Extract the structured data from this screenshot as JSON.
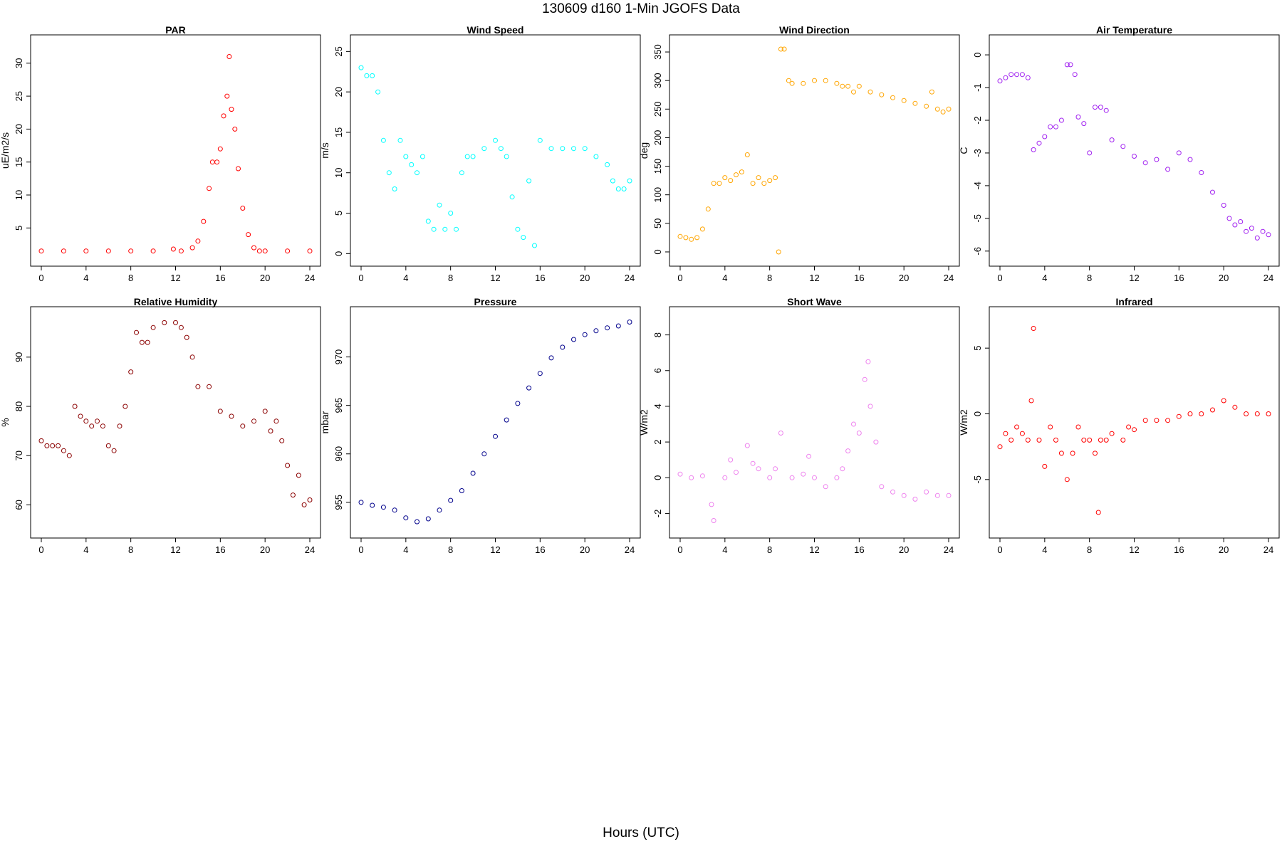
{
  "page": {
    "title": "130609   d160   1-Min  JGOFS Data",
    "xlabel": "Hours (UTC)"
  },
  "chart_data": [
    {
      "type": "scatter",
      "title": "PAR",
      "ylabel": "uE/m2/s",
      "color": "#ff0000",
      "xlim": [
        0,
        24
      ],
      "ylim": [
        0.5,
        33
      ],
      "xticks": [
        0,
        4,
        8,
        12,
        16,
        20,
        24
      ],
      "yticks": [
        5,
        10,
        15,
        20,
        25,
        30
      ],
      "x": [
        0,
        2,
        4,
        6,
        8,
        10,
        11.8,
        12.5,
        13.5,
        14,
        14.5,
        15,
        15.3,
        15.7,
        16,
        16.3,
        16.6,
        16.8,
        17,
        17.3,
        17.6,
        18,
        18.5,
        19,
        19.5,
        20,
        22,
        24
      ],
      "y": [
        1.5,
        1.5,
        1.5,
        1.5,
        1.5,
        1.5,
        1.8,
        1.5,
        2,
        3,
        6,
        11,
        15,
        15,
        17,
        22,
        25,
        31,
        23,
        20,
        14,
        8,
        4,
        2,
        1.5,
        1.5,
        1.5,
        1.5
      ]
    },
    {
      "type": "scatter",
      "title": "Wind Speed",
      "ylabel": "m/s",
      "color": "#00ffff",
      "xlim": [
        0,
        24
      ],
      "ylim": [
        -0.5,
        26
      ],
      "xticks": [
        0,
        4,
        8,
        12,
        16,
        20,
        24
      ],
      "yticks": [
        0,
        5,
        10,
        15,
        20,
        25
      ],
      "x": [
        0,
        0.5,
        1,
        1.5,
        2,
        2.5,
        3,
        3.5,
        4,
        4.5,
        5,
        5.5,
        6,
        6.5,
        7,
        7.5,
        8,
        8.5,
        9,
        9.5,
        10,
        11,
        12,
        12.5,
        13,
        13.5,
        14,
        14.5,
        15,
        15.5,
        16,
        17,
        18,
        19,
        20,
        21,
        22,
        22.5,
        23,
        23.5,
        24
      ],
      "y": [
        23,
        22,
        22,
        20,
        14,
        10,
        8,
        14,
        12,
        11,
        10,
        12,
        4,
        3,
        6,
        3,
        5,
        3,
        10,
        12,
        12,
        13,
        14,
        13,
        12,
        7,
        3,
        2,
        9,
        1,
        14,
        13,
        13,
        13,
        13,
        12,
        11,
        9,
        8,
        8,
        9
      ]
    },
    {
      "type": "scatter",
      "title": "Wind Direction",
      "ylabel": "deg",
      "color": "#ffa500",
      "xlim": [
        0,
        24
      ],
      "ylim": [
        -10,
        365
      ],
      "xticks": [
        0,
        4,
        8,
        12,
        16,
        20,
        24
      ],
      "yticks": [
        0,
        50,
        100,
        150,
        200,
        250,
        300,
        350
      ],
      "x": [
        0,
        0.5,
        1,
        1.5,
        2,
        2.5,
        3,
        3.5,
        4,
        4.5,
        5,
        5.5,
        6,
        6.5,
        7,
        7.5,
        8,
        8.5,
        8.8,
        9,
        9.3,
        9.7,
        10,
        11,
        12,
        13,
        14,
        14.5,
        15,
        15.5,
        16,
        17,
        18,
        19,
        20,
        21,
        22,
        22.5,
        23,
        23.5,
        24
      ],
      "y": [
        27,
        25,
        22,
        25,
        40,
        75,
        120,
        120,
        130,
        125,
        135,
        140,
        170,
        120,
        130,
        120,
        125,
        130,
        0,
        355,
        355,
        300,
        295,
        295,
        300,
        300,
        295,
        290,
        290,
        280,
        290,
        280,
        275,
        270,
        265,
        260,
        255,
        280,
        250,
        245,
        250
      ]
    },
    {
      "type": "scatter",
      "title": "Air Temperature",
      "ylabel": "C",
      "color": "#a020f0",
      "xlim": [
        0,
        24
      ],
      "ylim": [
        -6.2,
        0.35
      ],
      "xticks": [
        0,
        4,
        8,
        12,
        16,
        20,
        24
      ],
      "yticks": [
        0,
        -1,
        -2,
        -3,
        -4,
        -5,
        -6
      ],
      "x": [
        0,
        0.5,
        1,
        1.5,
        2,
        2.5,
        3,
        3.5,
        4,
        4.5,
        5,
        5.5,
        6,
        6.3,
        6.7,
        7,
        7.5,
        8,
        8.5,
        9,
        9.5,
        10,
        11,
        12,
        13,
        14,
        15,
        16,
        17,
        18,
        19,
        20,
        20.5,
        21,
        21.5,
        22,
        22.5,
        23,
        23.5,
        24
      ],
      "y": [
        -0.8,
        -0.7,
        -0.6,
        -0.6,
        -0.6,
        -0.7,
        -2.9,
        -2.7,
        -2.5,
        -2.2,
        -2.2,
        -2.0,
        -0.3,
        -0.3,
        -0.6,
        -1.9,
        -2.1,
        -3.0,
        -1.6,
        -1.6,
        -1.7,
        -2.6,
        -2.8,
        -3.1,
        -3.3,
        -3.2,
        -3.5,
        -3.0,
        -3.2,
        -3.6,
        -4.2,
        -4.6,
        -5.0,
        -5.2,
        -5.1,
        -5.4,
        -5.3,
        -5.6,
        -5.4,
        -5.5
      ]
    },
    {
      "type": "scatter",
      "title": "Relative Humidity",
      "ylabel": "%",
      "color": "#8b0000",
      "xlim": [
        0,
        24
      ],
      "ylim": [
        55,
        98.5
      ],
      "xticks": [
        0,
        4,
        8,
        12,
        16,
        20,
        24
      ],
      "yticks": [
        60,
        70,
        80,
        90
      ],
      "x": [
        0,
        0.5,
        1,
        1.5,
        2,
        2.5,
        3,
        3.5,
        4,
        4.5,
        5,
        5.5,
        6,
        6.5,
        7,
        7.5,
        8,
        8.5,
        9,
        9.5,
        10,
        11,
        12,
        12.5,
        13,
        13.5,
        14,
        15,
        16,
        17,
        18,
        19,
        20,
        20.5,
        21,
        21.5,
        22,
        22.5,
        23,
        23.5,
        24
      ],
      "y": [
        73,
        72,
        72,
        72,
        71,
        70,
        80,
        78,
        77,
        76,
        77,
        76,
        72,
        71,
        76,
        80,
        87,
        95,
        93,
        93,
        96,
        97,
        97,
        96,
        94,
        90,
        84,
        84,
        79,
        78,
        76,
        77,
        79,
        75,
        77,
        73,
        68,
        62,
        66,
        60,
        61
      ]
    },
    {
      "type": "scatter",
      "title": "Pressure",
      "ylabel": "mbar",
      "color": "#00008b",
      "xlim": [
        0,
        24
      ],
      "ylim": [
        952.2,
        974.3
      ],
      "xticks": [
        0,
        4,
        8,
        12,
        16,
        20,
        24
      ],
      "yticks": [
        955,
        960,
        965,
        970
      ],
      "x": [
        0,
        1,
        2,
        3,
        4,
        5,
        6,
        7,
        8,
        9,
        10,
        11,
        12,
        13,
        14,
        15,
        16,
        17,
        18,
        19,
        20,
        21,
        22,
        23,
        24
      ],
      "y": [
        955,
        954.7,
        954.5,
        954.2,
        953.4,
        953,
        953.3,
        954.2,
        955.2,
        956.2,
        958,
        960,
        961.8,
        963.5,
        965.2,
        966.8,
        968.3,
        969.9,
        971,
        971.8,
        972.3,
        972.7,
        973,
        973.2,
        973.6
      ]
    },
    {
      "type": "scatter",
      "title": "Short Wave",
      "ylabel": "W/m2",
      "color": "#ee82ee",
      "xlim": [
        0,
        24
      ],
      "ylim": [
        -2.9,
        9.1
      ],
      "xticks": [
        0,
        4,
        8,
        12,
        16,
        20,
        24
      ],
      "yticks": [
        -2,
        0,
        2,
        4,
        6,
        8
      ],
      "x": [
        0,
        1,
        2,
        2.8,
        3,
        4,
        4.5,
        5,
        6,
        6.5,
        7,
        8,
        8.5,
        9,
        10,
        11,
        11.5,
        12,
        13,
        14,
        14.5,
        15,
        15.5,
        16,
        16.5,
        16.8,
        17,
        17.5,
        18,
        19,
        20,
        21,
        22,
        23,
        24
      ],
      "y": [
        0.2,
        0,
        0.1,
        -1.5,
        -2.4,
        0,
        1,
        0.3,
        1.8,
        0.8,
        0.5,
        0,
        0.5,
        2.5,
        0,
        0.2,
        1.2,
        0,
        -0.5,
        0,
        0.5,
        1.5,
        3,
        2.5,
        5.5,
        6.5,
        4,
        2,
        -0.5,
        -0.8,
        -1,
        -1.2,
        -0.8,
        -1,
        -1
      ]
    },
    {
      "type": "scatter",
      "title": "Infrared",
      "ylabel": "W/m2",
      "color": "#ff0000",
      "xlim": [
        0,
        24
      ],
      "ylim": [
        -8.8,
        7.5
      ],
      "xticks": [
        0,
        4,
        8,
        12,
        16,
        20,
        24
      ],
      "yticks": [
        -5,
        0,
        5
      ],
      "x": [
        0,
        0.5,
        1,
        1.5,
        2,
        2.5,
        2.8,
        3,
        3.5,
        4,
        4.5,
        5,
        5.5,
        6,
        6.5,
        7,
        7.5,
        8,
        8.5,
        8.8,
        9,
        9.5,
        10,
        11,
        11.5,
        12,
        13,
        14,
        15,
        16,
        17,
        18,
        19,
        20,
        21,
        22,
        23,
        24
      ],
      "y": [
        -2.5,
        -1.5,
        -2,
        -1,
        -1.5,
        -2,
        1,
        6.5,
        -2,
        -4,
        -1,
        -2,
        -3,
        -5,
        -3,
        -1,
        -2,
        -2,
        -3,
        -7.5,
        -2,
        -2,
        -1.5,
        -2,
        -1,
        -1.2,
        -0.5,
        -0.5,
        -0.5,
        -0.2,
        0,
        0,
        0.3,
        1,
        0.5,
        0,
        0,
        0
      ]
    }
  ]
}
